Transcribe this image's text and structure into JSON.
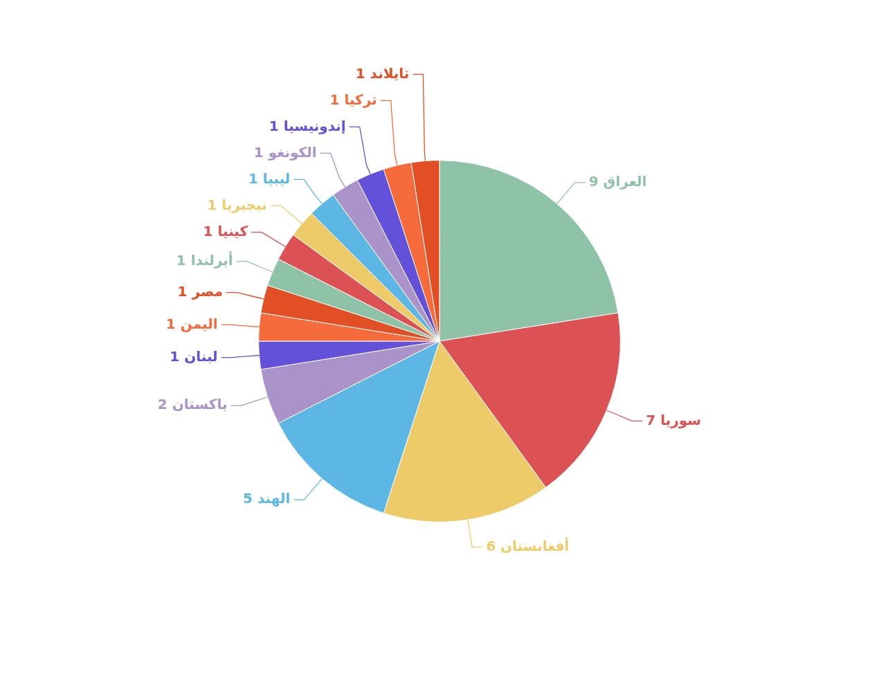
{
  "chart_data": {
    "type": "pie",
    "categories": [
      "العراق",
      "سوريا",
      "أفغانستان",
      "الهند",
      "باكستان",
      "لبنان",
      "اليمن",
      "مصر",
      "أيرلندا",
      "كينيا",
      "نيجيريا",
      "ليبيا",
      "الكونغو",
      "إندونيسيا",
      "تركيا",
      "تايلاند"
    ],
    "values": [
      9,
      7,
      6,
      5,
      2,
      1,
      1,
      1,
      1,
      1,
      1,
      1,
      1,
      1,
      1,
      1
    ],
    "colors": [
      "#8fc3a8",
      "#dc5153",
      "#eecb69",
      "#5db7e4",
      "#a993c9",
      "#6352d9",
      "#f56b3b",
      "#e34f24",
      "#8fc3a8",
      "#dc5153",
      "#eecb69",
      "#5db7e4",
      "#a993c9",
      "#6352d9",
      "#f56b3b",
      "#e34f24"
    ],
    "data_labels": true,
    "legend": false
  }
}
